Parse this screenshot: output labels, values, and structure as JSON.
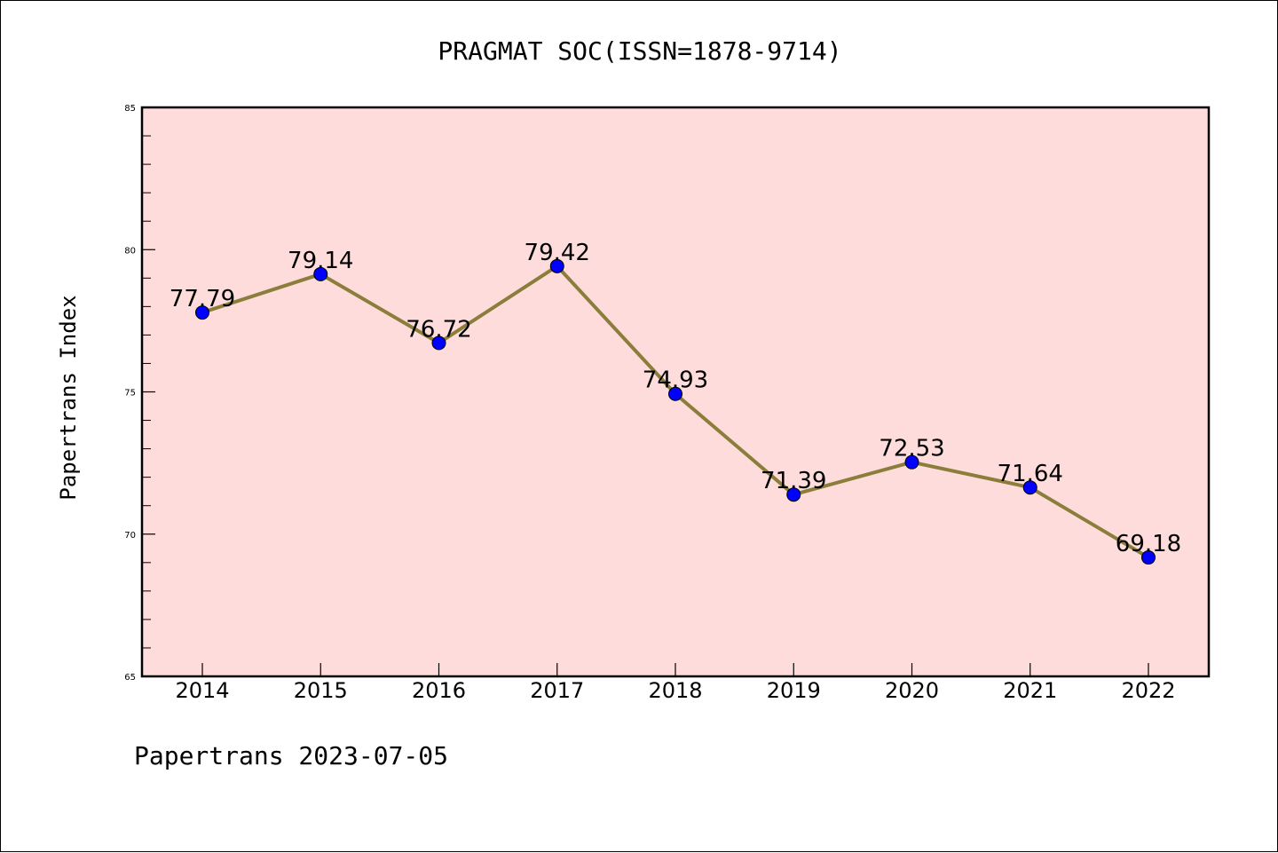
{
  "chart_data": {
    "type": "line",
    "title": "PRAGMAT SOC(ISSN=1878-9714)",
    "xlabel": "",
    "ylabel": "Papertrans Index",
    "x": [
      "2014",
      "2015",
      "2016",
      "2017",
      "2018",
      "2019",
      "2020",
      "2021",
      "2022"
    ],
    "series": [
      {
        "values": [
          77.79,
          79.14,
          76.72,
          79.42,
          74.93,
          71.39,
          72.53,
          71.64,
          69.18
        ],
        "value_labels": [
          "77.79",
          "79.14",
          "76.72",
          "79.42",
          "74.93",
          "71.39",
          "72.53",
          "71.64",
          "69.18"
        ],
        "line_color": "#8b7d3a",
        "marker_color": "#0000ff"
      }
    ],
    "ylim": [
      65,
      85
    ],
    "yticks": [
      65,
      70,
      75,
      80,
      85
    ],
    "ytick_labels": [
      "65",
      "70",
      "75",
      "80",
      "85"
    ],
    "minor_tick_step": 1,
    "grid": false,
    "legend": "none",
    "plot_background": "#ffdcdc"
  },
  "footer": {
    "text": "Papertrans 2023-07-05"
  }
}
